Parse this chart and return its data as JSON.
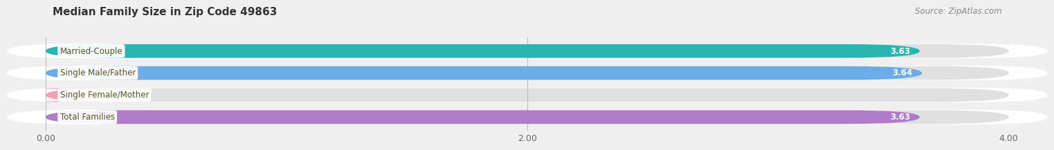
{
  "title": "Median Family Size in Zip Code 49863",
  "source": "Source: ZipAtlas.com",
  "categories": [
    "Married-Couple",
    "Single Male/Father",
    "Single Female/Mother",
    "Total Families"
  ],
  "values": [
    3.63,
    3.64,
    0.0,
    3.63
  ],
  "bar_colors": [
    "#2ab5b0",
    "#6aabe8",
    "#f4a0b5",
    "#b07bc8"
  ],
  "xlim_data": [
    0.0,
    4.0
  ],
  "xticks": [
    0.0,
    2.0,
    4.0
  ],
  "xtick_labels": [
    "0.00",
    "2.00",
    "4.00"
  ],
  "title_fontsize": 11,
  "source_fontsize": 8.5,
  "bar_label_fontsize": 8.5,
  "category_fontsize": 8.5,
  "bar_height": 0.62,
  "bar_spacing": 1.0,
  "background_color": "#f0f0f0",
  "bar_bg_color": "#e0e0e0",
  "white_bg": "#ffffff"
}
